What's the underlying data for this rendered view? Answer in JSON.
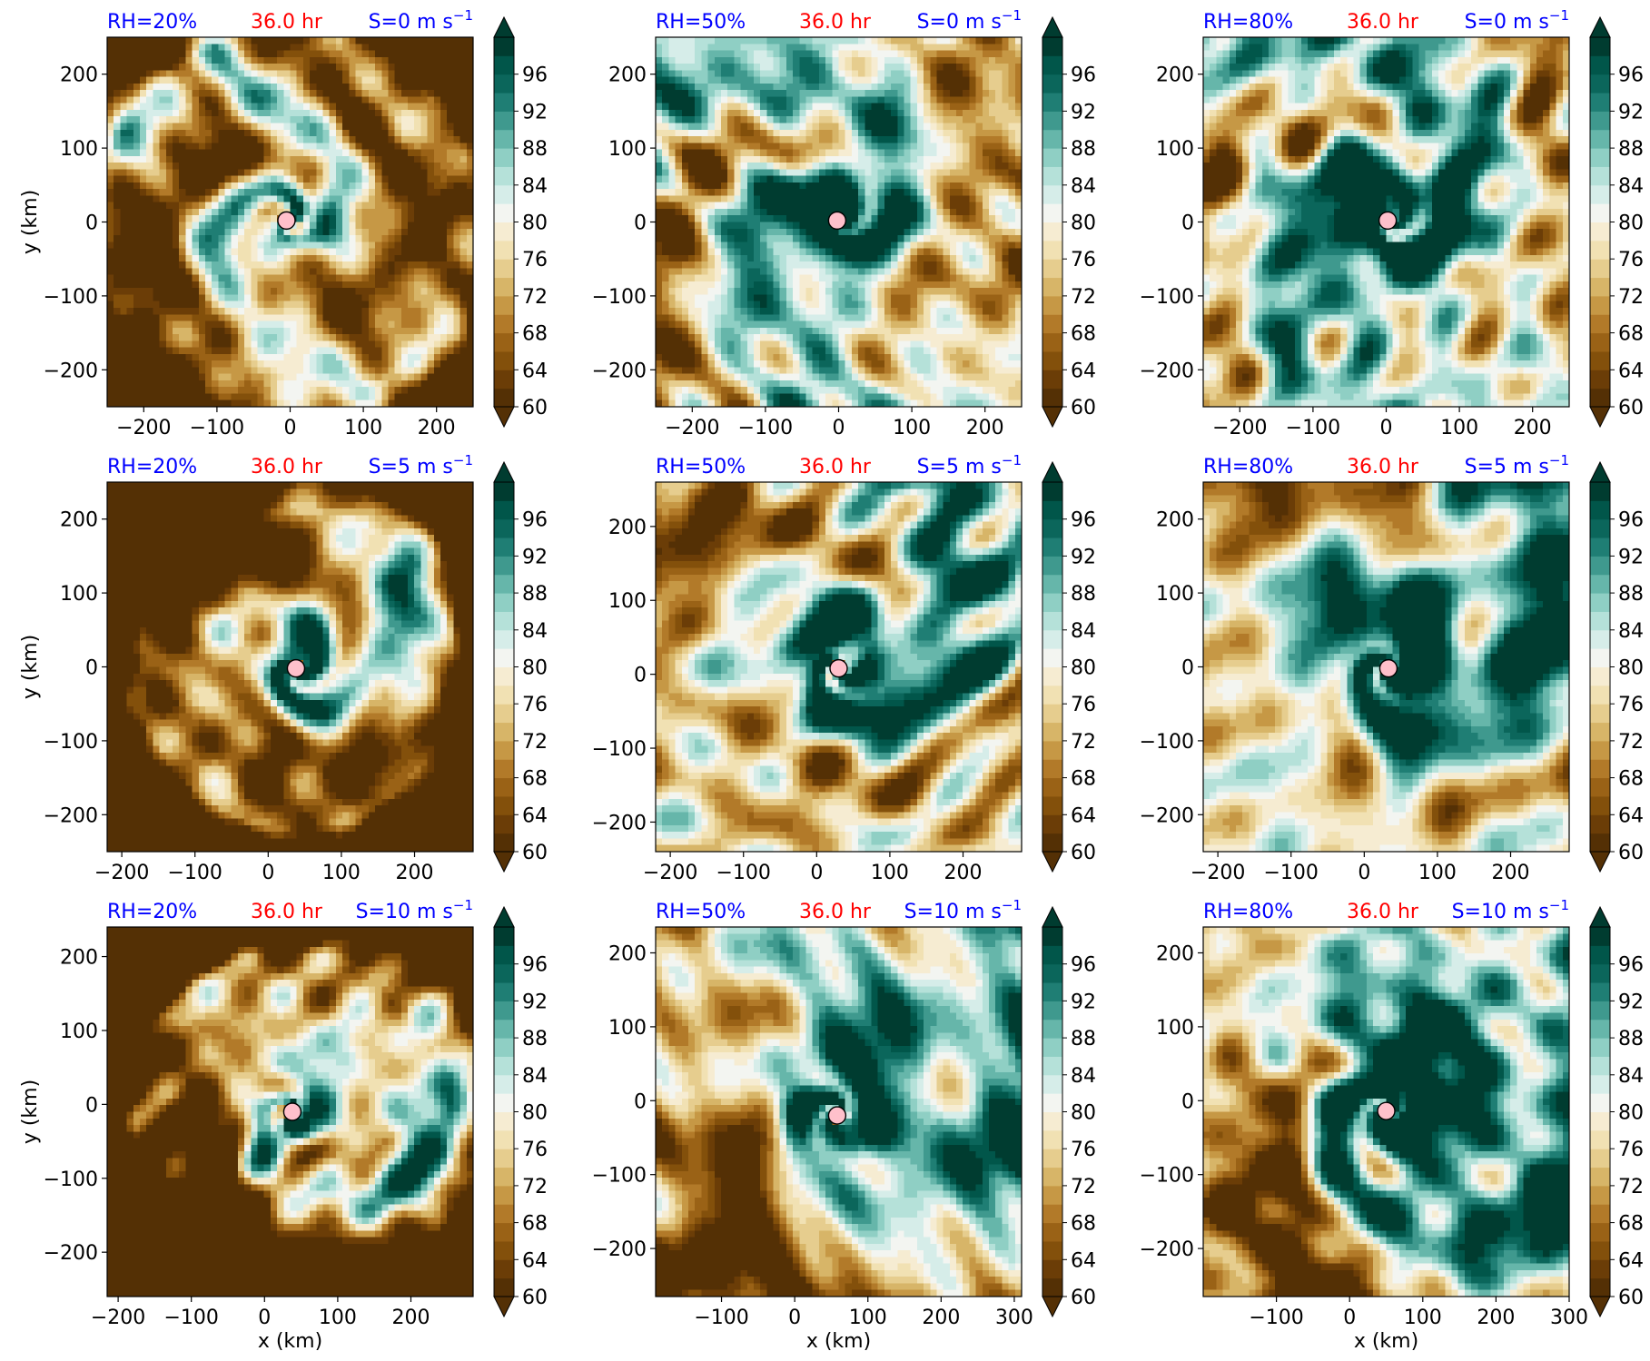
{
  "figure": {
    "xlabel": "x (km)",
    "ylabel": "y (km)",
    "time_label": "36.0 hr",
    "time_color": "#ff0000",
    "label_color": "#0000ff"
  },
  "colorbar": {
    "levels_min": 60,
    "levels_max": 100,
    "level_step": 2,
    "tick_labels": [
      "60",
      "64",
      "68",
      "72",
      "76",
      "80",
      "84",
      "88",
      "92",
      "96"
    ],
    "extend": "both",
    "colormap": "BrBG",
    "colors": [
      "#543005",
      "#6b3d07",
      "#83500b",
      "#9a6216",
      "#b27a29",
      "#c69845",
      "#d7b568",
      "#e6cd8e",
      "#f1e1b3",
      "#f6ecd2",
      "#f3f5f1",
      "#d6ede9",
      "#b5e1d9",
      "#8fcfc4",
      "#66b6aa",
      "#3f998e",
      "#1f7e74",
      "#0b665b",
      "#01564a",
      "#003c30"
    ]
  },
  "chart_data": [
    {
      "type": "heatmap",
      "rh_label": "RH=20%",
      "shear_label": "S=0 m s",
      "xticks": [
        "−200",
        "−100",
        "0",
        "100",
        "200"
      ],
      "yticks": [
        "200",
        "100",
        "0",
        "−100",
        "−200"
      ],
      "xlim": [
        -250,
        250
      ],
      "ylim": [
        -250,
        250
      ],
      "center": [
        -5,
        2
      ],
      "show_ylabel": true,
      "show_xlabel": false
    },
    {
      "type": "heatmap",
      "rh_label": "RH=50%",
      "shear_label": "S=0 m s",
      "xticks": [
        "−200",
        "−100",
        "0",
        "100",
        "200"
      ],
      "yticks": [
        "200",
        "100",
        "0",
        "−100",
        "−200"
      ],
      "xlim": [
        -250,
        250
      ],
      "ylim": [
        -250,
        250
      ],
      "center": [
        -2,
        2
      ],
      "show_ylabel": false,
      "show_xlabel": false
    },
    {
      "type": "heatmap",
      "rh_label": "RH=80%",
      "shear_label": "S=0 m s",
      "xticks": [
        "−200",
        "−100",
        "0",
        "100",
        "200"
      ],
      "yticks": [
        "200",
        "100",
        "0",
        "−100",
        "−200"
      ],
      "xlim": [
        -250,
        250
      ],
      "ylim": [
        -250,
        250
      ],
      "center": [
        2,
        2
      ],
      "show_ylabel": false,
      "show_xlabel": false
    },
    {
      "type": "heatmap",
      "rh_label": "RH=20%",
      "shear_label": "S=5 m s",
      "xticks": [
        "−200",
        "−100",
        "0",
        "100",
        "200"
      ],
      "yticks": [
        "200",
        "100",
        "0",
        "−100",
        "−200"
      ],
      "xlim": [
        -220,
        280
      ],
      "ylim": [
        -250,
        250
      ],
      "center": [
        38,
        -2
      ],
      "show_ylabel": true,
      "show_xlabel": false
    },
    {
      "type": "heatmap",
      "rh_label": "RH=50%",
      "shear_label": "S=5 m s",
      "xticks": [
        "−200",
        "−100",
        "0",
        "100",
        "200"
      ],
      "yticks": [
        "200",
        "100",
        "0",
        "−100",
        "−200"
      ],
      "xlim": [
        -220,
        280
      ],
      "ylim": [
        -240,
        260
      ],
      "center": [
        30,
        8
      ],
      "show_ylabel": false,
      "show_xlabel": false
    },
    {
      "type": "heatmap",
      "rh_label": "RH=80%",
      "shear_label": "S=5 m s",
      "xticks": [
        "−200",
        "−100",
        "0",
        "100",
        "200"
      ],
      "yticks": [
        "200",
        "100",
        "0",
        "−100",
        "−200"
      ],
      "xlim": [
        -220,
        280
      ],
      "ylim": [
        -250,
        250
      ],
      "center": [
        33,
        -2
      ],
      "show_ylabel": false,
      "show_xlabel": false
    },
    {
      "type": "heatmap",
      "rh_label": "RH=20%",
      "shear_label": "S=10 m s",
      "xticks": [
        "−200",
        "−100",
        "0",
        "100",
        "200"
      ],
      "yticks": [
        "200",
        "100",
        "0",
        "−100",
        "−200"
      ],
      "xlim": [
        -215,
        285
      ],
      "ylim": [
        -260,
        240
      ],
      "center": [
        38,
        -10
      ],
      "show_ylabel": true,
      "show_xlabel": true
    },
    {
      "type": "heatmap",
      "rh_label": "RH=50%",
      "shear_label": "S=10 m s",
      "xticks": [
        "−100",
        "0",
        "100",
        "200",
        "300"
      ],
      "yticks": [
        "200",
        "100",
        "0",
        "−100",
        "−200"
      ],
      "xlim": [
        -190,
        310
      ],
      "ylim": [
        -265,
        235
      ],
      "center": [
        58,
        -20
      ],
      "show_ylabel": false,
      "show_xlabel": true
    },
    {
      "type": "heatmap",
      "rh_label": "RH=80%",
      "shear_label": "S=10 m s",
      "xticks": [
        "−100",
        "0",
        "100",
        "200",
        "300"
      ],
      "yticks": [
        "200",
        "100",
        "0",
        "−100",
        "−200"
      ],
      "xlim": [
        -200,
        300
      ],
      "ylim": [
        -265,
        235
      ],
      "center": [
        50,
        -14
      ],
      "show_ylabel": false,
      "show_xlabel": true
    }
  ]
}
